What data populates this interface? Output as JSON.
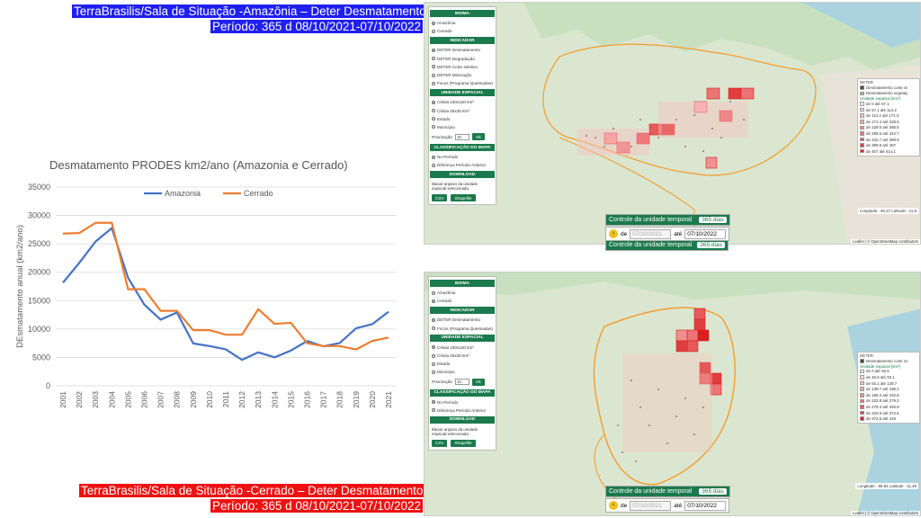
{
  "banners": {
    "top_line1": "TerraBrasilis/Sala de Situação -Amazônia – Deter Desmatamento",
    "top_line2": "Período: 365 d 08/10/2021-07/10/2022",
    "bottom_line1": "TerraBrasilis/Sala de Situação -Cerrado – Deter Desmatamento",
    "bottom_line2": "Período: 365 d 08/10/2021-07/10/2022"
  },
  "chart_data": {
    "type": "line",
    "title": "Desmatamento PRODES km2/ano (Amazonia e Cerrado)",
    "ylabel": "DEsmatamento anual (km2/ano)",
    "xlabel": "",
    "ylim": [
      0,
      35000
    ],
    "yticks": [
      "0",
      "5000",
      "10000",
      "15000",
      "20000",
      "25000",
      "30000",
      "35000"
    ],
    "categories": [
      "2001",
      "2002",
      "2003",
      "2004",
      "2005",
      "2006",
      "2007",
      "2008",
      "2009",
      "2010",
      "2011",
      "2012",
      "2013",
      "2014",
      "2015",
      "2016",
      "2017",
      "2018",
      "2019",
      "2020",
      "2021"
    ],
    "grid": true,
    "legend": "top",
    "series": [
      {
        "name": "Amazonia",
        "color": "#4472c4",
        "values": [
          18165,
          21650,
          25396,
          27772,
          19014,
          14286,
          11651,
          12911,
          7464,
          7000,
          6418,
          4571,
          5891,
          5012,
          6207,
          7893,
          6947,
          7536,
          10129,
          10851,
          13038
        ]
      },
      {
        "name": "Cerrado",
        "color": "#ed7d31",
        "values": [
          26800,
          26900,
          28700,
          28700,
          17000,
          17000,
          13200,
          13200,
          9800,
          9800,
          9000,
          9000,
          13500,
          10900,
          11100,
          7500,
          7000,
          7000,
          6400,
          7900,
          8500
        ]
      }
    ]
  },
  "map1": {
    "bioma_header": "BIOMA",
    "bioma_options": [
      "Amazônia",
      "Cerrado"
    ],
    "bioma_selected": 0,
    "indicador_header": "INDICADOR",
    "indicador_options": [
      "DETER Desmatamento",
      "DETER Degradação",
      "DETER Corte seletivo",
      "DETER Mineração",
      "Focos (Programa Queimadas)"
    ],
    "indicador_selected": 0,
    "unidade_header": "UNIDADE ESPACIAL",
    "unidade_options": [
      "Célula 150x150 km²",
      "Célula 25x25 km²",
      "Estado",
      "Município"
    ],
    "unidade_selected": 0,
    "priorizacao_label": "Priorização",
    "priorizacao_value": "10",
    "ok_label": "Ok",
    "classificacao_header": "CLASSIFICAÇÃO DO MAPA",
    "classificacao_options": [
      "No Período",
      "Diferença Período Anterior"
    ],
    "classificacao_selected": 0,
    "download_header": "DOWNLOAD",
    "download_note": "Baixar arquivo da unidade espacial selecionada.",
    "csv_label": "CSV",
    "shapefile_label": "Shapefile",
    "legend_title": "DETER",
    "legend_items": [
      "Desmatamento corte ra",
      "Desmatamento vegetaç"
    ],
    "legend_sub": "Unidade espacial (km²)",
    "legend_ranges": [
      "de   0   até   57.1",
      "de   57.1  até  114.2",
      "de  114.2  até  171.4",
      "de  171.4  até  228.5",
      "de  228.5  até  285.6",
      "de  285.6  até  342.7",
      "de  342.7  até  399.9",
      "de  399.9  até  457",
      "de   457   até  514.1"
    ],
    "legend_colors": [
      "#fde9e9",
      "#fbd6d6",
      "#f8c0c0",
      "#f5a8a8",
      "#f08f8f",
      "#eb7474",
      "#e65a5a",
      "#e03e3e",
      "#d91f1f"
    ],
    "tc_title": "Controle da unidade temporal",
    "tc_days": "365 dias",
    "tc_de": "de",
    "tc_from": "07/10/2021",
    "tc_ate": "até",
    "tc_to": "07/10/2022",
    "coord": "Longitude: -46,37 Latitude: -11,9",
    "scale_top": "300 km",
    "scale_bot": "300 mi",
    "attrib": "Leaflet | © OpenStreetMap contributors"
  },
  "map2": {
    "bioma_header": "BIOMA",
    "bioma_options": [
      "Amazônia",
      "Cerrado"
    ],
    "bioma_selected": 1,
    "indicador_header": "INDICADOR",
    "indicador_options": [
      "DETER Desmatamento",
      "Focos (Programa Queimadas)"
    ],
    "indicador_selected": 0,
    "unidade_header": "UNIDADE ESPACIAL",
    "unidade_options": [
      "Célula 150x150 km²",
      "Célula 25x25 km²",
      "Estado",
      "Município"
    ],
    "unidade_selected": 0,
    "priorizacao_label": "Priorização",
    "priorizacao_value": "10",
    "ok_label": "Ok",
    "classificacao_header": "CLASSIFICAÇÃO DO MAPA",
    "classificacao_options": [
      "No Período",
      "Diferença Período Anterior"
    ],
    "classificacao_selected": 0,
    "download_header": "DOWNLOAD",
    "download_note": "Baixar arquivo da unidade espacial selecionada.",
    "csv_label": "CSV",
    "shapefile_label": "Shapefile",
    "legend_title": "DETER",
    "legend_items": [
      "Desmatamento corte ra"
    ],
    "legend_sub": "Unidade espacial (km²)",
    "legend_ranges": [
      "de   0   até   46.6",
      "de   46.6  até   93.1",
      "de   93.1  até  139.7",
      "de  139.7  até  186.2",
      "de  186.2  até  232.8",
      "de  232.8  até  279.3",
      "de  279.3  até  325.9",
      "de  325.9  até  372.5",
      "de  372.5  até  419"
    ],
    "legend_colors": [
      "#fde9e9",
      "#fbd6d6",
      "#f8c0c0",
      "#f5a8a8",
      "#f08f8f",
      "#eb7474",
      "#e65a5a",
      "#e03e3e",
      "#d91f1f"
    ],
    "tc_title": "Controle da unidade temporal",
    "tc_days": "365 dias",
    "tc_de": "de",
    "tc_from": "07/10/2021",
    "tc_ate": "até",
    "tc_to": "07/10/2022",
    "coord": "Longitude: -59,92 Latitude: -11,49",
    "scale_top": "300 km",
    "scale_bot": "300 mi",
    "attrib": "Leaflet | © OpenStreetMap contributors"
  }
}
